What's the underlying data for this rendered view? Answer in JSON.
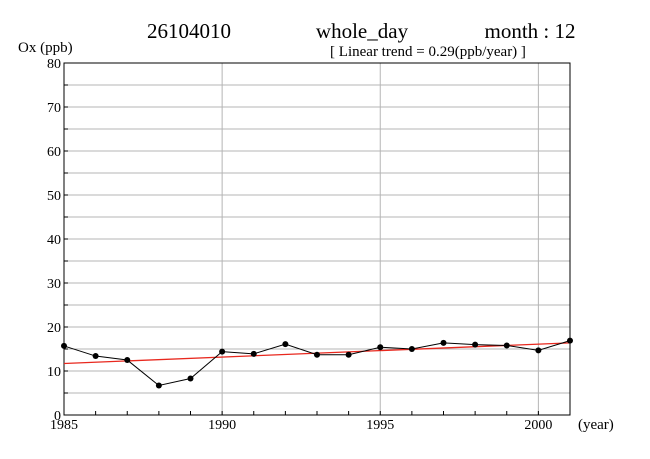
{
  "header": {
    "station": "26104010",
    "period": "whole_day",
    "month_label": "month : 12",
    "trend_label": "[ Linear trend = 0.29(ppb/year) ]"
  },
  "chart_data": {
    "type": "line",
    "ylabel": "Ox (ppb)",
    "xlabel": "(year)",
    "xlim": [
      1985,
      2001
    ],
    "ylim": [
      0,
      80
    ],
    "x_ticks": [
      1985,
      1990,
      1995,
      2000
    ],
    "y_ticks": [
      0,
      10,
      20,
      30,
      40,
      50,
      60,
      70,
      80
    ],
    "grid": true,
    "x": [
      1985,
      1986,
      1987,
      1988,
      1989,
      1990,
      1991,
      1992,
      1993,
      1994,
      1995,
      1996,
      1997,
      1998,
      1999,
      2000,
      2001
    ],
    "series": [
      {
        "values": [
          15.7,
          13.4,
          12.5,
          6.7,
          8.3,
          14.4,
          13.9,
          16.1,
          13.7,
          13.7,
          15.4,
          15.0,
          16.4,
          16.0,
          15.8,
          14.7,
          16.9
        ],
        "color": "#000000"
      }
    ],
    "trend": {
      "slope": 0.29,
      "start": [
        1985,
        11.7
      ],
      "end": [
        2001,
        16.4
      ],
      "color": "#e8281e"
    }
  }
}
